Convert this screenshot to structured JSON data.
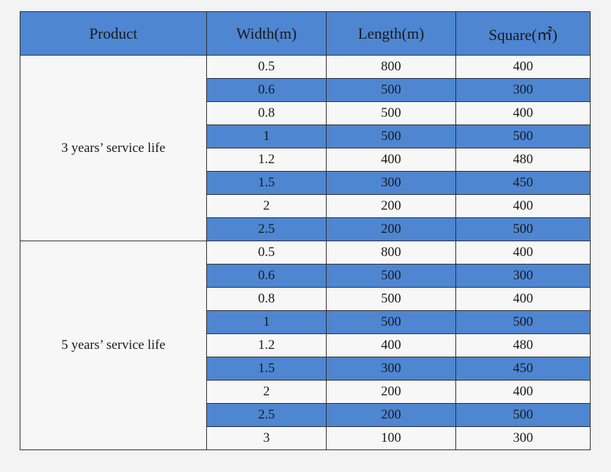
{
  "headers": {
    "product": "Product",
    "width": "Width(m)",
    "length": "Length(m)",
    "square": "Square(㎡)"
  },
  "colors": {
    "header_bg": "#4e86d2",
    "row_blue": "#4e86d2",
    "row_white": "#f7f7f7",
    "border": "#2b2b2b"
  },
  "groups": [
    {
      "product": "3 years’ service life",
      "rows": [
        {
          "width": "0.5",
          "length": "800",
          "square": "400"
        },
        {
          "width": "0.6",
          "length": "500",
          "square": "300"
        },
        {
          "width": "0.8",
          "length": "500",
          "square": "400"
        },
        {
          "width": "1",
          "length": "500",
          "square": "500"
        },
        {
          "width": "1.2",
          "length": "400",
          "square": "480"
        },
        {
          "width": "1.5",
          "length": "300",
          "square": "450"
        },
        {
          "width": "2",
          "length": "200",
          "square": "400"
        },
        {
          "width": "2.5",
          "length": "200",
          "square": "500"
        }
      ]
    },
    {
      "product": "5 years’ service life",
      "rows": [
        {
          "width": "0.5",
          "length": "800",
          "square": "400"
        },
        {
          "width": "0.6",
          "length": "500",
          "square": "300"
        },
        {
          "width": "0.8",
          "length": "500",
          "square": "400"
        },
        {
          "width": "1",
          "length": "500",
          "square": "500"
        },
        {
          "width": "1.2",
          "length": "400",
          "square": "480"
        },
        {
          "width": "1.5",
          "length": "300",
          "square": "450"
        },
        {
          "width": "2",
          "length": "200",
          "square": "400"
        },
        {
          "width": "2.5",
          "length": "200",
          "square": "500"
        },
        {
          "width": "3",
          "length": "100",
          "square": "300"
        }
      ]
    }
  ]
}
